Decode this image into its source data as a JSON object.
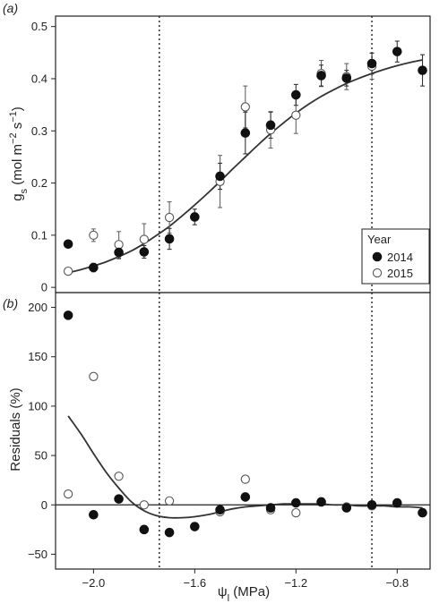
{
  "chart_data": [
    {
      "panel": "(a)",
      "type": "scatter",
      "ylabel_main": "g",
      "ylabel_sub": "s",
      "ylabel_unit": " (mol m",
      "ylabel_exp1": "−2",
      "ylabel_unit2": " s",
      "ylabel_exp2": "−1",
      "ylabel_close": ")",
      "xlim": [
        -2.15,
        -0.67
      ],
      "ylim": [
        -0.01,
        0.52
      ],
      "yticks": [
        "0",
        "0.1",
        "0.2",
        "0.3",
        "0.4",
        "0.5"
      ],
      "ytick_values": [
        0,
        0.1,
        0.2,
        0.3,
        0.4,
        0.5
      ],
      "vlines": [
        -1.74,
        -0.9
      ],
      "legend": {
        "title": "Year",
        "placement": "bottom-right",
        "entries": [
          {
            "label": "2014",
            "marker": "filled"
          },
          {
            "label": "2015",
            "marker": "open"
          }
        ]
      },
      "series": [
        {
          "name": "2014",
          "marker": "filled",
          "points": [
            {
              "x": -2.1,
              "y": 0.083,
              "err": 0
            },
            {
              "x": -2.0,
              "y": 0.038,
              "err": 0.008
            },
            {
              "x": -1.9,
              "y": 0.067,
              "err": 0.012
            },
            {
              "x": -1.8,
              "y": 0.068,
              "err": 0.012
            },
            {
              "x": -1.7,
              "y": 0.093,
              "err": 0.02
            },
            {
              "x": -1.6,
              "y": 0.135,
              "err": 0.015
            },
            {
              "x": -1.5,
              "y": 0.213,
              "err": 0.025
            },
            {
              "x": -1.4,
              "y": 0.296,
              "err": 0.04
            },
            {
              "x": -1.3,
              "y": 0.311,
              "err": 0.025
            },
            {
              "x": -1.2,
              "y": 0.369,
              "err": 0.02
            },
            {
              "x": -1.1,
              "y": 0.406,
              "err": 0.02
            },
            {
              "x": -1.0,
              "y": 0.401,
              "err": 0.015
            },
            {
              "x": -0.9,
              "y": 0.429,
              "err": 0.02
            },
            {
              "x": -0.8,
              "y": 0.452,
              "err": 0.02
            },
            {
              "x": -0.7,
              "y": 0.416,
              "err": 0.03
            }
          ]
        },
        {
          "name": "2015",
          "marker": "open",
          "points": [
            {
              "x": -2.1,
              "y": 0.031,
              "err": 0
            },
            {
              "x": -2.0,
              "y": 0.1,
              "err": 0.012
            },
            {
              "x": -1.9,
              "y": 0.082,
              "err": 0.025
            },
            {
              "x": -1.8,
              "y": 0.092,
              "err": 0.03
            },
            {
              "x": -1.7,
              "y": 0.134,
              "err": 0.03
            },
            {
              "x": -1.5,
              "y": 0.203,
              "err": 0.05
            },
            {
              "x": -1.4,
              "y": 0.346,
              "err": 0.04
            },
            {
              "x": -1.3,
              "y": 0.302,
              "err": 0.035
            },
            {
              "x": -1.2,
              "y": 0.33,
              "err": 0.035
            },
            {
              "x": -1.1,
              "y": 0.41,
              "err": 0.025
            },
            {
              "x": -1.0,
              "y": 0.404,
              "err": 0.025
            },
            {
              "x": -0.9,
              "y": 0.424,
              "err": 0.025
            }
          ]
        }
      ],
      "fit_curve": {
        "x": [
          -2.1,
          -2.05,
          -2.0,
          -1.95,
          -1.9,
          -1.85,
          -1.8,
          -1.75,
          -1.7,
          -1.65,
          -1.6,
          -1.55,
          -1.5,
          -1.45,
          -1.4,
          -1.35,
          -1.3,
          -1.25,
          -1.2,
          -1.15,
          -1.1,
          -1.05,
          -1.0,
          -0.95,
          -0.9,
          -0.85,
          -0.8,
          -0.75,
          -0.7
        ],
        "y": [
          0.028,
          0.034,
          0.041,
          0.049,
          0.059,
          0.07,
          0.084,
          0.1,
          0.117,
          0.137,
          0.158,
          0.18,
          0.203,
          0.227,
          0.25,
          0.273,
          0.295,
          0.315,
          0.334,
          0.351,
          0.366,
          0.379,
          0.391,
          0.401,
          0.41,
          0.418,
          0.425,
          0.431,
          0.436
        ]
      }
    },
    {
      "panel": "(b)",
      "type": "scatter",
      "ylabel": "Residuals (%)",
      "xlabel_main": "ψ",
      "xlabel_sub": "l",
      "xlabel_unit": " (MPa)",
      "xlim": [
        -2.15,
        -0.67
      ],
      "ylim": [
        -65,
        215
      ],
      "xticks": [
        "−2.0",
        "−1.6",
        "−1.2",
        "−0.8"
      ],
      "xtick_values": [
        -2.0,
        -1.6,
        -1.2,
        -0.8
      ],
      "yticks": [
        "−50",
        "0",
        "50",
        "100",
        "150",
        "200"
      ],
      "ytick_values": [
        -50,
        0,
        50,
        100,
        150,
        200
      ],
      "hline": 0,
      "vlines": [
        -1.74,
        -0.9
      ],
      "series": [
        {
          "name": "2014",
          "marker": "filled",
          "points": [
            {
              "x": -2.1,
              "y": 192
            },
            {
              "x": -2.0,
              "y": -10
            },
            {
              "x": -1.9,
              "y": 6
            },
            {
              "x": -1.8,
              "y": -25
            },
            {
              "x": -1.7,
              "y": -28
            },
            {
              "x": -1.6,
              "y": -22
            },
            {
              "x": -1.5,
              "y": -5
            },
            {
              "x": -1.4,
              "y": 8
            },
            {
              "x": -1.3,
              "y": -3
            },
            {
              "x": -1.2,
              "y": 2
            },
            {
              "x": -1.1,
              "y": 3
            },
            {
              "x": -1.0,
              "y": -3
            },
            {
              "x": -0.9,
              "y": 0
            },
            {
              "x": -0.8,
              "y": 2
            },
            {
              "x": -0.7,
              "y": -8
            }
          ]
        },
        {
          "name": "2015",
          "marker": "open",
          "points": [
            {
              "x": -2.1,
              "y": 11
            },
            {
              "x": -2.0,
              "y": 130
            },
            {
              "x": -1.9,
              "y": 29
            },
            {
              "x": -1.8,
              "y": 0
            },
            {
              "x": -1.7,
              "y": 4
            },
            {
              "x": -1.5,
              "y": -7
            },
            {
              "x": -1.4,
              "y": 26
            },
            {
              "x": -1.3,
              "y": -5
            },
            {
              "x": -1.2,
              "y": -8
            },
            {
              "x": -1.1,
              "y": 3
            },
            {
              "x": -1.0,
              "y": -2
            },
            {
              "x": -0.9,
              "y": -1
            }
          ]
        }
      ],
      "fit_curve": {
        "x": [
          -2.1,
          -2.05,
          -2.0,
          -1.95,
          -1.9,
          -1.85,
          -1.8,
          -1.75,
          -1.7,
          -1.65,
          -1.6,
          -1.55,
          -1.5,
          -1.45,
          -1.4,
          -1.35,
          -1.3,
          -1.25,
          -1.2,
          -1.15,
          -1.1,
          -1.05,
          -1.0,
          -0.95,
          -0.9,
          -0.85,
          -0.8,
          -0.75,
          -0.7
        ],
        "y": [
          90,
          72,
          52,
          33,
          17,
          3,
          -6,
          -11,
          -13,
          -13,
          -12,
          -10,
          -7,
          -4,
          -2,
          -1,
          0,
          1,
          1,
          1,
          1,
          0,
          0,
          -1,
          -1,
          -1,
          -2,
          -2,
          -3
        ]
      }
    }
  ]
}
